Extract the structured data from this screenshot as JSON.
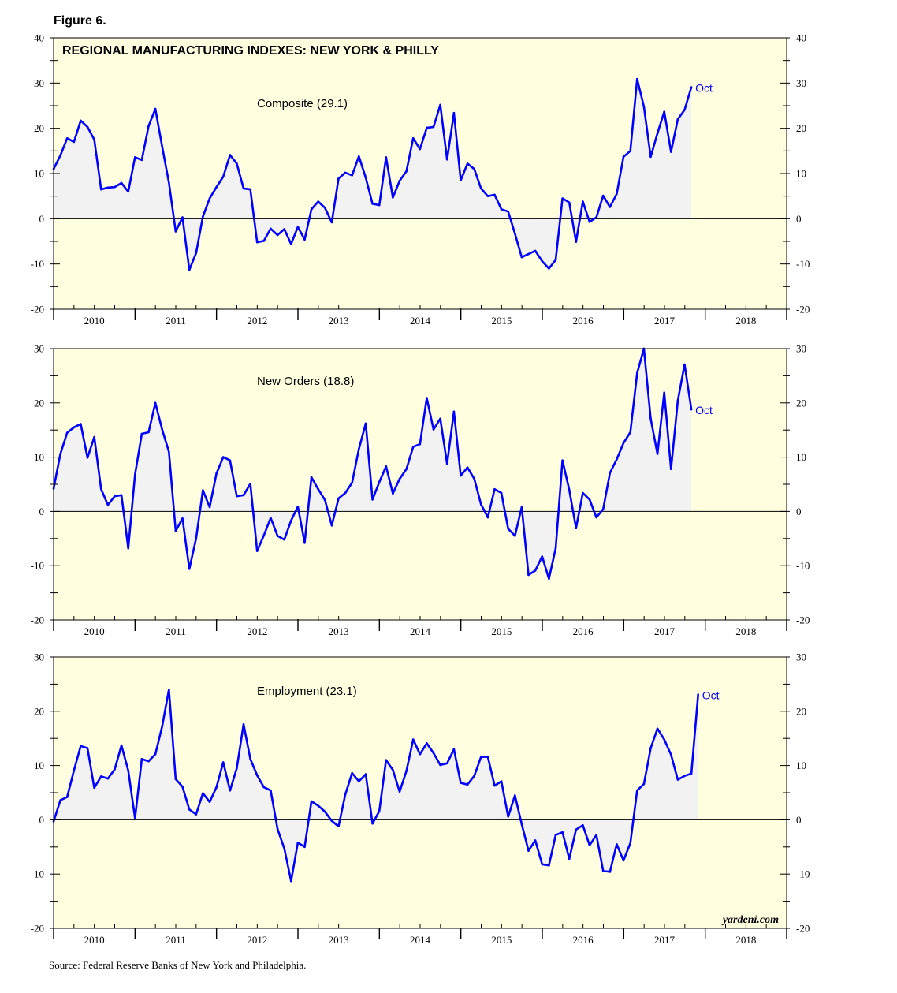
{
  "figure_title": "Figure 6.",
  "source": "Source: Federal Reserve Banks of New York and Philadelphia.",
  "watermark": "yardeni.com",
  "colors": {
    "background": "#ffffe0",
    "line": "#0000ff",
    "fill": "#f2f2f2"
  },
  "chart_data": [
    {
      "type": "area",
      "title": "REGIONAL MANUFACTURING INDEXES: NEW YORK & PHILLY",
      "label": "Composite (29.1)",
      "end_label": "Oct",
      "ylim": [
        -20,
        40
      ],
      "yticks": [
        -20,
        -10,
        0,
        10,
        20,
        30,
        40
      ],
      "xlim": [
        2010,
        2019
      ],
      "xticks": [
        "2010",
        "2011",
        "2012",
        "2013",
        "2014",
        "2015",
        "2016",
        "2017",
        "2018"
      ],
      "start": 2010.0,
      "step": 0.0833,
      "values": [
        11,
        14,
        17.8,
        17,
        21.7,
        20.3,
        17.5,
        6.5,
        6.9,
        7,
        7.9,
        6,
        13.6,
        13,
        20.5,
        24.3,
        16,
        8,
        -2.8,
        0.3,
        -11.3,
        -7.6,
        0.5,
        4.5,
        7,
        9.3,
        14.1,
        12.2,
        6.7,
        6.5,
        -5.2,
        -4.9,
        -2.2,
        -3.6,
        -2.3,
        -5.6,
        -1.8,
        -4.6,
        2.1,
        3.8,
        2.4,
        -0.8,
        8.9,
        10.2,
        9.6,
        13.8,
        9.1,
        3.3,
        3,
        13.6,
        4.7,
        8.4,
        10.5,
        17.8,
        15.4,
        20.1,
        20.3,
        25.2,
        13.1,
        23.4,
        8.5,
        12.2,
        11,
        6.7,
        5,
        5.3,
        2.1,
        1.6,
        -3.3,
        -8.5,
        -7.8,
        -7.1,
        -9.4,
        -11,
        -9.1,
        4.5,
        3.6,
        -5.1,
        3.8,
        -0.7,
        0.3,
        5.1,
        2.6,
        5.5,
        13.7,
        15,
        30.9,
        24.8,
        13.7,
        18.9,
        23.7,
        14.8,
        22,
        24.1,
        29.1
      ]
    },
    {
      "type": "area",
      "label": "New Orders (18.8)",
      "end_label": "Oct",
      "ylim": [
        -20,
        30
      ],
      "yticks": [
        -20,
        -10,
        0,
        10,
        20,
        30
      ],
      "xlim": [
        2010,
        2019
      ],
      "xticks": [
        "2010",
        "2011",
        "2012",
        "2013",
        "2014",
        "2015",
        "2016",
        "2017",
        "2018"
      ],
      "start": 2010.0,
      "step": 0.0833,
      "values": [
        4.2,
        10.6,
        14.5,
        15.5,
        16.1,
        9.9,
        13.7,
        4.1,
        1.2,
        2.8,
        3,
        -6.8,
        6.8,
        14.3,
        14.6,
        20,
        15.1,
        11,
        -3.6,
        -1.3,
        -10.6,
        -5,
        3.9,
        0.8,
        7,
        10,
        9.4,
        2.8,
        3,
        5.1,
        -7.3,
        -4.4,
        -1.2,
        -4.5,
        -5.2,
        -1.7,
        0.9,
        -5.8,
        6.3,
        4.1,
        2.1,
        -2.6,
        2.4,
        3.4,
        5.3,
        11.5,
        16.2,
        2.2,
        5.4,
        8.3,
        3.3,
        6,
        7.8,
        11.9,
        12.4,
        20.9,
        15.1,
        17.1,
        8.8,
        18.4,
        6.6,
        8.1,
        6,
        1.3,
        -1.1,
        4.1,
        3.4,
        -3.2,
        -4.5,
        0.8,
        -11.7,
        -10.9,
        -8.3,
        -12.4,
        -6.8,
        9.4,
        4,
        -3.1,
        3.4,
        2.2,
        -1.1,
        0.4,
        7.1,
        9.6,
        12.6,
        14.6,
        25.5,
        30,
        17.1,
        10.6,
        21.9,
        7.8,
        20.4,
        27.1,
        18.8
      ]
    },
    {
      "type": "area",
      "label": "Employment (23.1)",
      "end_label": "Oct",
      "ylim": [
        -20,
        30
      ],
      "yticks": [
        -20,
        -10,
        0,
        10,
        20,
        30
      ],
      "xlim": [
        2010,
        2019
      ],
      "xticks": [
        "2010",
        "2011",
        "2012",
        "2013",
        "2014",
        "2015",
        "2016",
        "2017",
        "2018"
      ],
      "start": 2010.0,
      "step": 0.0833,
      "values": [
        -0.3,
        3.6,
        4.2,
        9.1,
        13.6,
        13.2,
        5.9,
        8,
        7.6,
        9.3,
        13.7,
        9.1,
        0.3,
        11.2,
        10.8,
        12.1,
        17.2,
        24,
        7.5,
        6.1,
        1.9,
        1,
        4.9,
        3.3,
        6,
        10.6,
        5.4,
        9.5,
        17.6,
        11.2,
        8.2,
        6,
        5.4,
        -1.7,
        -5.3,
        -11.3,
        -4.2,
        -5,
        3.4,
        2.6,
        1.5,
        -0.2,
        -1.2,
        4.7,
        8.6,
        7.1,
        8.4,
        -0.7,
        1.6,
        11,
        9.2,
        5.2,
        9,
        14.8,
        12.1,
        14.1,
        12.3,
        10.1,
        10.4,
        13,
        6.8,
        6.5,
        8.1,
        11.6,
        11.6,
        6.3,
        7.1,
        0.6,
        4.5,
        -0.8,
        -5.7,
        -3.8,
        -8.2,
        -8.4,
        -2.8,
        -2.3,
        -7.2,
        -1.8,
        -1,
        -4.7,
        -2.8,
        -9.4,
        -9.6,
        -4.5,
        -7.5,
        -4.3,
        5.4,
        6.6,
        13.2,
        16.8,
        14.8,
        12,
        7.4,
        8.1,
        8.5,
        23.1
      ]
    }
  ]
}
